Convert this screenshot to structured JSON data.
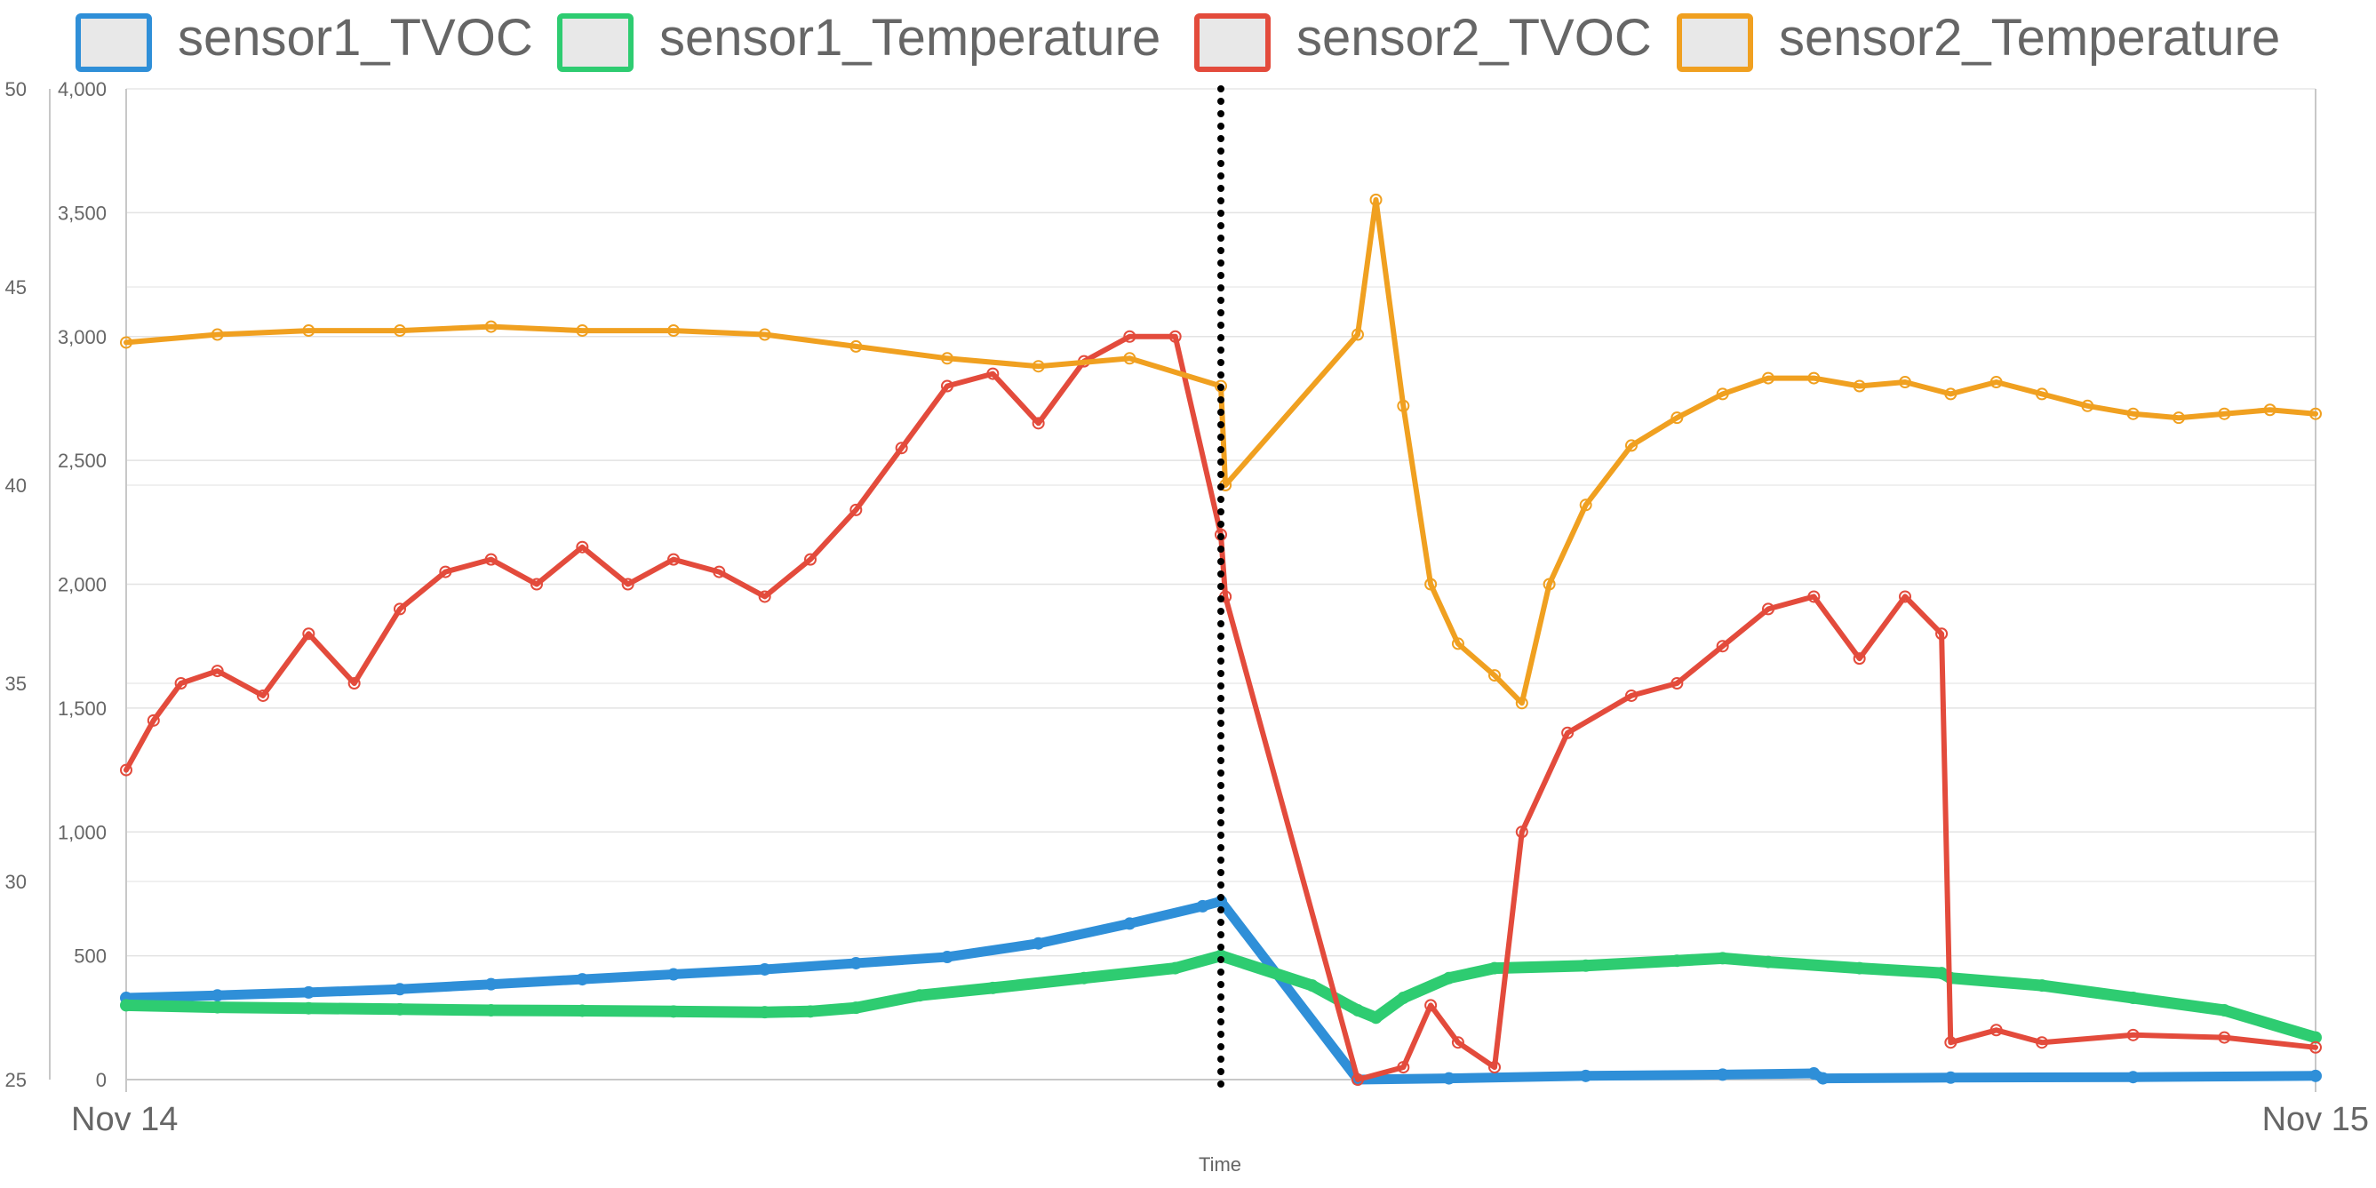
{
  "chart_data": {
    "type": "line",
    "xlabel": "Time",
    "x_ticks": [
      "Nov 14",
      "Nov 15"
    ],
    "x_range": [
      0,
      24
    ],
    "y_left": {
      "range": [
        25,
        50
      ],
      "ticks": [
        25,
        30,
        35,
        40,
        45,
        50
      ]
    },
    "y_right": {
      "range": [
        0,
        4000
      ],
      "ticks": [
        "0",
        "500",
        "1,000",
        "1,500",
        "2,000",
        "2,500",
        "3,000",
        "3,500",
        "4,000"
      ],
      "tick_values": [
        0,
        500,
        1000,
        1500,
        2000,
        2500,
        3000,
        3500,
        4000
      ]
    },
    "grid": true,
    "legend_position": "top",
    "annotations": [
      {
        "type": "vertical-dotted-line",
        "x": 12.0
      }
    ],
    "series": [
      {
        "name": "sensor1_TVOC",
        "color": "#2f8fd8",
        "axis": "right",
        "points": [
          [
            0.0,
            330
          ],
          [
            1.0,
            340
          ],
          [
            2.0,
            352
          ],
          [
            3.0,
            365
          ],
          [
            4.0,
            385
          ],
          [
            5.0,
            405
          ],
          [
            6.0,
            425
          ],
          [
            7.0,
            445
          ],
          [
            8.0,
            470
          ],
          [
            9.0,
            495
          ],
          [
            10.0,
            550
          ],
          [
            11.0,
            630
          ],
          [
            11.8,
            700
          ],
          [
            12.0,
            720
          ],
          [
            13.5,
            0
          ],
          [
            14.5,
            5
          ],
          [
            16.0,
            15
          ],
          [
            17.5,
            20
          ],
          [
            18.5,
            25
          ],
          [
            18.6,
            5
          ],
          [
            20.0,
            8
          ],
          [
            22.0,
            10
          ],
          [
            24.0,
            15
          ]
        ]
      },
      {
        "name": "sensor1_Temperature",
        "color": "#2ecc71",
        "axis": "right",
        "points": [
          [
            0.0,
            300
          ],
          [
            1.0,
            292
          ],
          [
            2.0,
            288
          ],
          [
            3.0,
            284
          ],
          [
            4.0,
            280
          ],
          [
            5.0,
            278
          ],
          [
            6.0,
            275
          ],
          [
            7.0,
            272
          ],
          [
            7.5,
            275
          ],
          [
            8.0,
            290
          ],
          [
            8.7,
            340
          ],
          [
            9.5,
            370
          ],
          [
            10.5,
            410
          ],
          [
            11.5,
            450
          ],
          [
            12.0,
            500
          ],
          [
            13.0,
            380
          ],
          [
            13.5,
            280
          ],
          [
            13.7,
            250
          ],
          [
            14.0,
            330
          ],
          [
            14.5,
            410
          ],
          [
            15.0,
            450
          ],
          [
            16.0,
            460
          ],
          [
            17.0,
            480
          ],
          [
            17.5,
            490
          ],
          [
            18.0,
            475
          ],
          [
            19.0,
            450
          ],
          [
            19.9,
            430
          ],
          [
            20.0,
            410
          ],
          [
            21.0,
            380
          ],
          [
            22.0,
            330
          ],
          [
            23.0,
            280
          ],
          [
            24.0,
            170
          ]
        ]
      },
      {
        "name": "sensor2_TVOC",
        "color": "#e34b3c",
        "axis": "right",
        "points": [
          [
            0.0,
            1250
          ],
          [
            0.3,
            1450
          ],
          [
            0.6,
            1600
          ],
          [
            1.0,
            1650
          ],
          [
            1.5,
            1550
          ],
          [
            2.0,
            1800
          ],
          [
            2.5,
            1600
          ],
          [
            3.0,
            1900
          ],
          [
            3.5,
            2050
          ],
          [
            4.0,
            2100
          ],
          [
            4.5,
            2000
          ],
          [
            5.0,
            2150
          ],
          [
            5.5,
            2000
          ],
          [
            6.0,
            2100
          ],
          [
            6.5,
            2050
          ],
          [
            7.0,
            1950
          ],
          [
            7.5,
            2100
          ],
          [
            8.0,
            2300
          ],
          [
            8.5,
            2550
          ],
          [
            9.0,
            2800
          ],
          [
            9.5,
            2850
          ],
          [
            10.0,
            2650
          ],
          [
            10.5,
            2900
          ],
          [
            11.0,
            3000
          ],
          [
            11.5,
            3000
          ],
          [
            12.0,
            2200
          ],
          [
            12.05,
            1950
          ],
          [
            13.5,
            0
          ],
          [
            14.0,
            50
          ],
          [
            14.3,
            300
          ],
          [
            14.6,
            150
          ],
          [
            15.0,
            50
          ],
          [
            15.3,
            1000
          ],
          [
            15.8,
            1400
          ],
          [
            16.5,
            1550
          ],
          [
            17.0,
            1600
          ],
          [
            17.5,
            1750
          ],
          [
            18.0,
            1900
          ],
          [
            18.5,
            1950
          ],
          [
            19.0,
            1700
          ],
          [
            19.5,
            1950
          ],
          [
            19.9,
            1800
          ],
          [
            20.0,
            150
          ],
          [
            20.5,
            200
          ],
          [
            21.0,
            150
          ],
          [
            22.0,
            180
          ],
          [
            23.0,
            170
          ],
          [
            24.0,
            130
          ]
        ]
      },
      {
        "name": "sensor2_Temperature",
        "color": "#f0a020",
        "axis": "left",
        "points": [
          [
            0.0,
            43.6
          ],
          [
            1.0,
            43.8
          ],
          [
            2.0,
            43.9
          ],
          [
            3.0,
            43.9
          ],
          [
            4.0,
            44.0
          ],
          [
            5.0,
            43.9
          ],
          [
            6.0,
            43.9
          ],
          [
            7.0,
            43.8
          ],
          [
            8.0,
            43.5
          ],
          [
            9.0,
            43.2
          ],
          [
            10.0,
            43.0
          ],
          [
            11.0,
            43.2
          ],
          [
            12.0,
            42.5
          ],
          [
            12.05,
            40.0
          ],
          [
            13.5,
            43.8
          ],
          [
            13.7,
            47.2
          ],
          [
            14.0,
            42.0
          ],
          [
            14.3,
            37.5
          ],
          [
            14.6,
            36.0
          ],
          [
            15.0,
            35.2
          ],
          [
            15.3,
            34.5
          ],
          [
            15.6,
            37.5
          ],
          [
            16.0,
            39.5
          ],
          [
            16.5,
            41.0
          ],
          [
            17.0,
            41.7
          ],
          [
            17.5,
            42.3
          ],
          [
            18.0,
            42.7
          ],
          [
            18.5,
            42.7
          ],
          [
            19.0,
            42.5
          ],
          [
            19.5,
            42.6
          ],
          [
            20.0,
            42.3
          ],
          [
            20.5,
            42.6
          ],
          [
            21.0,
            42.3
          ],
          [
            21.5,
            42.0
          ],
          [
            22.0,
            41.8
          ],
          [
            22.5,
            41.7
          ],
          [
            23.0,
            41.8
          ],
          [
            23.5,
            41.9
          ],
          [
            24.0,
            41.8
          ]
        ]
      }
    ]
  }
}
